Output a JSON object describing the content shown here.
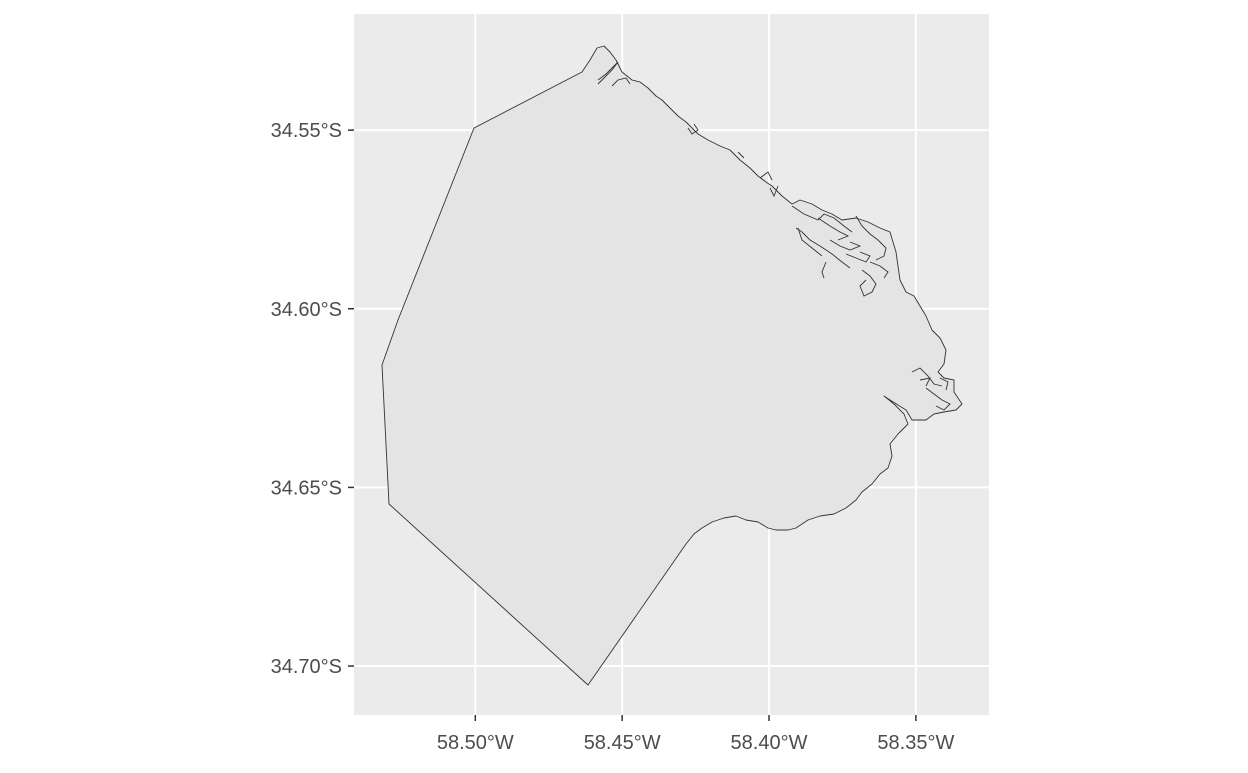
{
  "map": {
    "panel_background": "#ebebeb",
    "grid_color": "#ffffff",
    "region_fill": "#e4e4e4",
    "region_stroke": "#333333",
    "axis_text_color": "#4d4d4d",
    "x_ticks": [
      {
        "lon": -58.5,
        "label": "58.50°W"
      },
      {
        "lon": -58.45,
        "label": "58.45°W"
      },
      {
        "lon": -58.4,
        "label": "58.40°W"
      },
      {
        "lon": -58.35,
        "label": "58.35°W"
      }
    ],
    "y_ticks": [
      {
        "lat": -34.55,
        "label": "34.55°S"
      },
      {
        "lat": -34.6,
        "label": "34.60°S"
      },
      {
        "lat": -34.65,
        "label": "34.65°S"
      },
      {
        "lat": -34.7,
        "label": "34.70°S"
      }
    ],
    "lon_range": [
      -58.5413,
      -58.3251
    ],
    "lat_range": [
      -34.7137,
      -34.5175
    ]
  }
}
